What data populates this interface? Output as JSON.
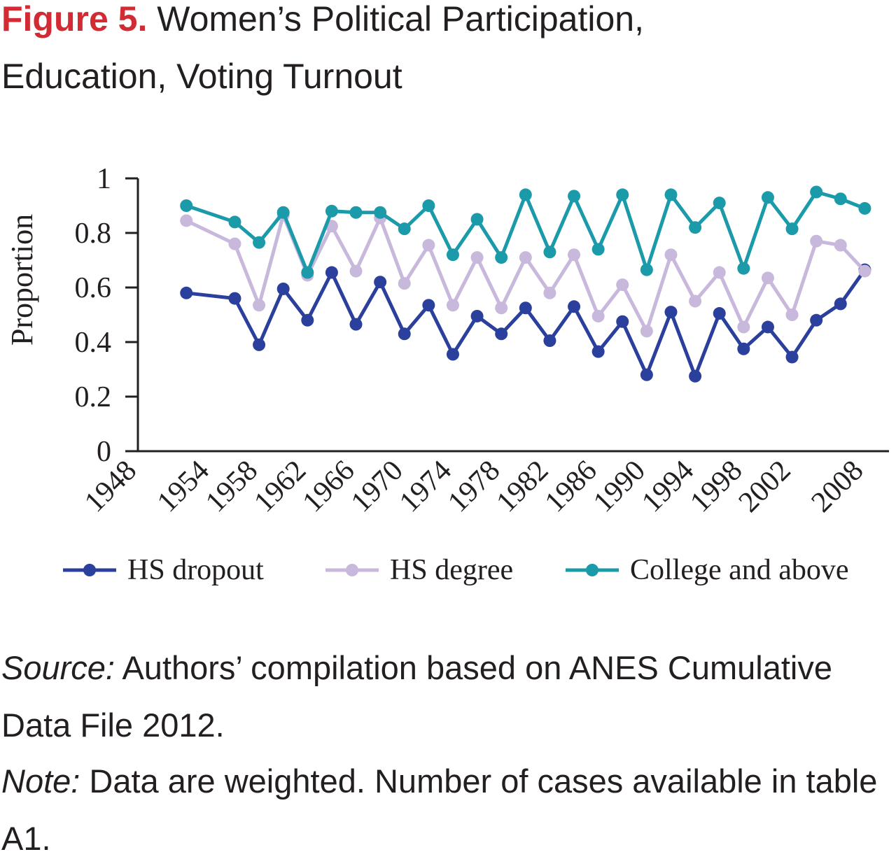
{
  "figure_label": "Figure 5.",
  "title": "Women’s Political Participation, Education, Voting Turnout",
  "chart_data": {
    "type": "line",
    "ylabel": "Proportion",
    "x": [
      1952,
      1956,
      1958,
      1960,
      1962,
      1964,
      1966,
      1968,
      1970,
      1972,
      1974,
      1976,
      1978,
      1980,
      1982,
      1984,
      1986,
      1988,
      1990,
      1992,
      1994,
      1996,
      1998,
      2000,
      2002,
      2004,
      2006,
      2008
    ],
    "series": [
      {
        "name": "HS dropout",
        "color": "#2b3f9c",
        "values": [
          0.58,
          0.56,
          0.39,
          0.595,
          0.48,
          0.655,
          0.465,
          0.62,
          0.43,
          0.535,
          0.355,
          0.495,
          0.43,
          0.525,
          0.405,
          0.53,
          0.365,
          0.475,
          0.28,
          0.51,
          0.275,
          0.505,
          0.375,
          0.455,
          0.345,
          0.48,
          0.54,
          0.665
        ]
      },
      {
        "name": "HS degree",
        "color": "#c8b8dc",
        "values": [
          0.845,
          0.76,
          0.535,
          0.865,
          0.645,
          0.825,
          0.66,
          0.855,
          0.615,
          0.755,
          0.535,
          0.71,
          0.525,
          0.71,
          0.58,
          0.72,
          0.495,
          0.61,
          0.44,
          0.72,
          0.55,
          0.655,
          0.455,
          0.635,
          0.5,
          0.77,
          0.755,
          0.66
        ]
      },
      {
        "name": "College and above",
        "color": "#1b9aaa",
        "values": [
          0.9,
          0.84,
          0.765,
          0.875,
          0.655,
          0.88,
          0.875,
          0.875,
          0.815,
          0.9,
          0.72,
          0.85,
          0.71,
          0.94,
          0.73,
          0.935,
          0.74,
          0.94,
          0.665,
          0.94,
          0.82,
          0.91,
          0.67,
          0.93,
          0.815,
          0.95,
          0.925,
          0.89
        ]
      }
    ],
    "xlim": [
      1948,
      2010
    ],
    "xticks": [
      1948,
      1954,
      1958,
      1962,
      1966,
      1970,
      1974,
      1978,
      1982,
      1986,
      1990,
      1994,
      1998,
      2002,
      2008
    ],
    "ylim": [
      0,
      1
    ],
    "yticks": [
      0,
      0.2,
      0.4,
      0.6,
      0.8,
      1
    ],
    "legend": "bottom"
  },
  "source_label": "Source:",
  "source": "Authors’ compilation based on ANES Cumulative Data File 2012.",
  "note_label": "Note:",
  "note": "Data are weighted. Number of cases available in table A1."
}
